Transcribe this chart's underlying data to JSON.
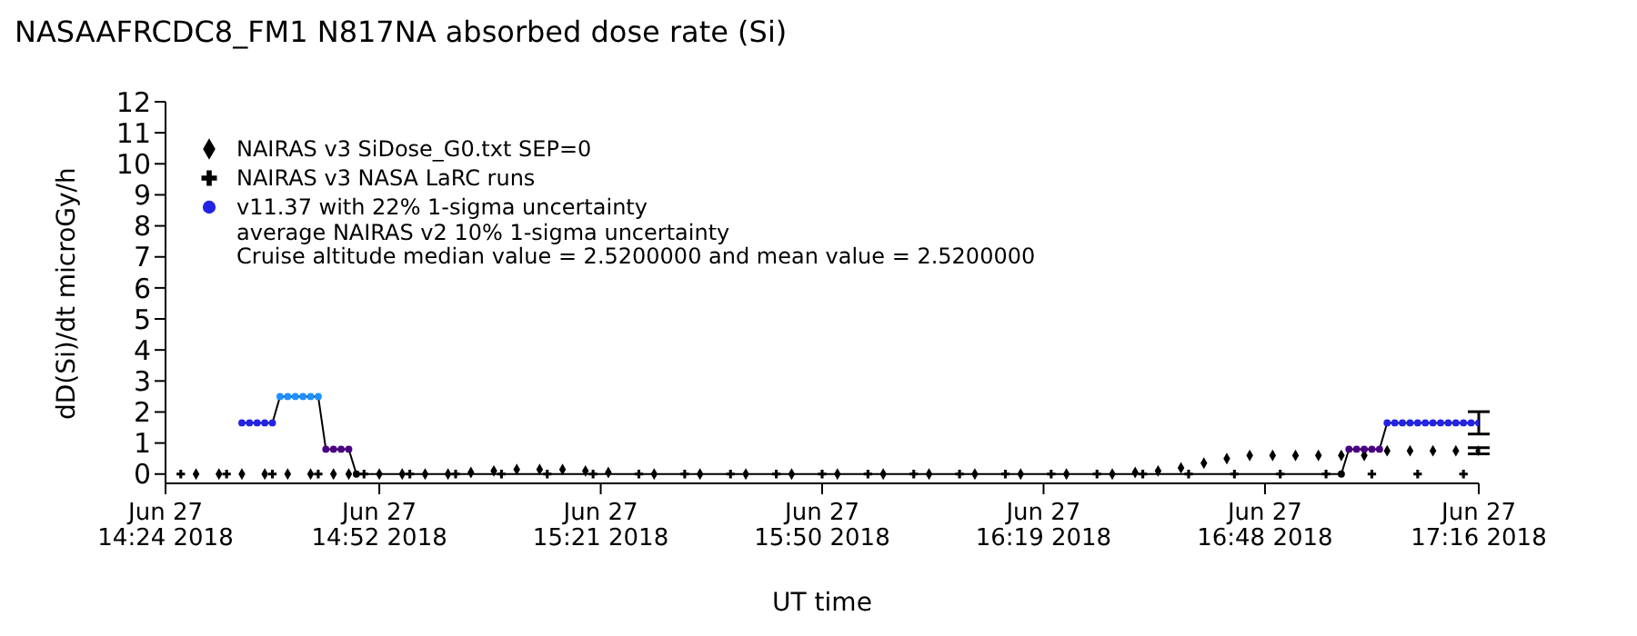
{
  "chart_data": {
    "type": "scatter",
    "title": "NASAAFRCDC8_FM1   N817NA absorbed dose rate (Si)",
    "xlabel": "UT time",
    "ylabel": "dD(Si)/dt microGy/h",
    "annotations": [
      "average NAIRAS v2 10% 1-sigma uncertainty",
      "Cruise altitude median value = 2.5200000 and mean value = 2.5200000"
    ],
    "xlim": [
      "2018-06-27T14:24",
      "2018-06-27T17:16"
    ],
    "xticks": [
      {
        "value": "2018-06-27T14:24",
        "label": "Jun 27\n14:24 2018"
      },
      {
        "value": "2018-06-27T14:52",
        "label": "Jun 27\n14:52 2018"
      },
      {
        "value": "2018-06-27T15:21",
        "label": "Jun 27\n15:21 2018"
      },
      {
        "value": "2018-06-27T15:50",
        "label": "Jun 27\n15:50 2018"
      },
      {
        "value": "2018-06-27T16:19",
        "label": "Jun 27\n16:19 2018"
      },
      {
        "value": "2018-06-27T16:48",
        "label": "Jun 27\n16:48 2018"
      },
      {
        "value": "2018-06-27T17:16",
        "label": "Jun 27\n17:16 2018"
      }
    ],
    "ylim": [
      -0.3,
      12
    ],
    "yticks": [
      0,
      1,
      2,
      3,
      4,
      5,
      6,
      7,
      8,
      9,
      10,
      11,
      12
    ],
    "grid": false,
    "legend": "top left",
    "series": [
      {
        "name": "NAIRAS v3 SiDose_G0.txt SEP=0",
        "marker": "diamond",
        "color": "#000000",
        "x": [
          "2018-06-27T14:28",
          "2018-06-27T14:31",
          "2018-06-27T14:34",
          "2018-06-27T14:37",
          "2018-06-27T14:40",
          "2018-06-27T14:43",
          "2018-06-27T14:46",
          "2018-06-27T14:48",
          "2018-06-27T14:52",
          "2018-06-27T14:55",
          "2018-06-27T14:58",
          "2018-06-27T15:01",
          "2018-06-27T15:04",
          "2018-06-27T15:07",
          "2018-06-27T15:10",
          "2018-06-27T15:13",
          "2018-06-27T15:16",
          "2018-06-27T15:19",
          "2018-06-27T15:22",
          "2018-06-27T15:28",
          "2018-06-27T15:34",
          "2018-06-27T15:40",
          "2018-06-27T15:46",
          "2018-06-27T15:52",
          "2018-06-27T15:58",
          "2018-06-27T16:04",
          "2018-06-27T16:10",
          "2018-06-27T16:16",
          "2018-06-27T16:22",
          "2018-06-27T16:28",
          "2018-06-27T16:31",
          "2018-06-27T16:34",
          "2018-06-27T16:37",
          "2018-06-27T16:40",
          "2018-06-27T16:43",
          "2018-06-27T16:46",
          "2018-06-27T16:49",
          "2018-06-27T16:52",
          "2018-06-27T16:55",
          "2018-06-27T16:58",
          "2018-06-27T17:01",
          "2018-06-27T17:04",
          "2018-06-27T17:07",
          "2018-06-27T17:10",
          "2018-06-27T17:13",
          "2018-06-27T17:16"
        ],
        "values": [
          0,
          0,
          0,
          0,
          0,
          0,
          0,
          0,
          0,
          0,
          0,
          0,
          0.05,
          0.1,
          0.15,
          0.15,
          0.15,
          0.1,
          0.05,
          0,
          0,
          0,
          0,
          0,
          0,
          0,
          0,
          0,
          0,
          0,
          0.05,
          0.1,
          0.2,
          0.35,
          0.5,
          0.6,
          0.6,
          0.6,
          0.6,
          0.6,
          0.6,
          0.75,
          0.75,
          0.75,
          0.75,
          0.75
        ],
        "errors": [
          null,
          null,
          null,
          null,
          null,
          null,
          null,
          null,
          null,
          null,
          null,
          null,
          null,
          null,
          null,
          null,
          null,
          null,
          null,
          null,
          null,
          null,
          null,
          null,
          null,
          null,
          null,
          null,
          null,
          null,
          null,
          null,
          null,
          null,
          null,
          null,
          null,
          null,
          null,
          null,
          null,
          null,
          null,
          null,
          null,
          0.1
        ]
      },
      {
        "name": "NAIRAS v3 NASA LaRC runs",
        "marker": "cross",
        "color": "#000000",
        "x": [
          "2018-06-27T14:26",
          "2018-06-27T14:32",
          "2018-06-27T14:38",
          "2018-06-27T14:44",
          "2018-06-27T14:50",
          "2018-06-27T14:56",
          "2018-06-27T15:02",
          "2018-06-27T15:08",
          "2018-06-27T15:14",
          "2018-06-27T15:20",
          "2018-06-27T15:26",
          "2018-06-27T15:32",
          "2018-06-27T15:38",
          "2018-06-27T15:44",
          "2018-06-27T15:50",
          "2018-06-27T15:56",
          "2018-06-27T16:02",
          "2018-06-27T16:08",
          "2018-06-27T16:14",
          "2018-06-27T16:20",
          "2018-06-27T16:26",
          "2018-06-27T16:32",
          "2018-06-27T16:38",
          "2018-06-27T16:44",
          "2018-06-27T16:50",
          "2018-06-27T16:56",
          "2018-06-27T17:02",
          "2018-06-27T17:08",
          "2018-06-27T17:14"
        ],
        "values": [
          0,
          0,
          0,
          0,
          0,
          0,
          0,
          0,
          0,
          0,
          0,
          0,
          0,
          0,
          0,
          0,
          0,
          0,
          0,
          0,
          0,
          0,
          0,
          0,
          0,
          0,
          0,
          0,
          0
        ]
      },
      {
        "type": "line",
        "marker": "none",
        "line_style": "solid",
        "color": "#000000",
        "x": [
          "2018-06-27T14:34",
          "2018-06-27T14:38",
          "2018-06-27T14:39",
          "2018-06-27T14:44",
          "2018-06-27T14:45",
          "2018-06-27T14:48",
          "2018-06-27T14:49",
          "2018-06-27T16:58",
          "2018-06-27T16:59",
          "2018-06-27T17:03",
          "2018-06-27T17:04",
          "2018-06-27T17:16"
        ],
        "values": [
          1.65,
          1.65,
          2.5,
          2.5,
          0.8,
          0.8,
          0,
          0,
          0.8,
          0.8,
          1.65,
          1.65
        ]
      },
      {
        "name": "v11.37 with 22% 1-sigma uncertainty",
        "marker": "circle",
        "color": "#2323e6",
        "x": [
          "2018-06-27T14:34",
          "2018-06-27T14:35",
          "2018-06-27T14:36",
          "2018-06-27T14:37",
          "2018-06-27T14:38",
          "2018-06-27T14:39",
          "2018-06-27T14:40",
          "2018-06-27T14:41",
          "2018-06-27T14:42",
          "2018-06-27T14:43",
          "2018-06-27T14:44",
          "2018-06-27T14:45",
          "2018-06-27T14:46",
          "2018-06-27T14:47",
          "2018-06-27T14:48",
          "2018-06-27T14:49",
          "2018-06-27T16:58",
          "2018-06-27T16:59",
          "2018-06-27T17:00",
          "2018-06-27T17:01",
          "2018-06-27T17:02",
          "2018-06-27T17:03",
          "2018-06-27T17:04",
          "2018-06-27T17:05",
          "2018-06-27T17:06",
          "2018-06-27T17:07",
          "2018-06-27T17:08",
          "2018-06-27T17:09",
          "2018-06-27T17:10",
          "2018-06-27T17:11",
          "2018-06-27T17:12",
          "2018-06-27T17:13",
          "2018-06-27T17:14",
          "2018-06-27T17:15",
          "2018-06-27T17:16"
        ],
        "values": [
          1.65,
          1.65,
          1.65,
          1.65,
          1.65,
          2.5,
          2.5,
          2.5,
          2.5,
          2.5,
          2.5,
          0.8,
          0.8,
          0.8,
          0.8,
          0,
          0,
          0.8,
          0.8,
          0.8,
          0.8,
          0.8,
          1.65,
          1.65,
          1.65,
          1.65,
          1.65,
          1.65,
          1.65,
          1.65,
          1.65,
          1.65,
          1.65,
          1.65,
          1.65
        ],
        "colors": [
          "#2323e6",
          "#2323e6",
          "#2323e6",
          "#2323e6",
          "#2323e6",
          "#1e90ff",
          "#1e90ff",
          "#1e90ff",
          "#1e90ff",
          "#1e90ff",
          "#1e90ff",
          "#4b0082",
          "#4b0082",
          "#4b0082",
          "#4b0082",
          "#000000",
          "#000000",
          "#4b0082",
          "#4b0082",
          "#4b0082",
          "#4b0082",
          "#4b0082",
          "#2323e6",
          "#2323e6",
          "#2323e6",
          "#2323e6",
          "#2323e6",
          "#2323e6",
          "#2323e6",
          "#2323e6",
          "#2323e6",
          "#2323e6",
          "#2323e6",
          "#2323e6",
          "#2323e6"
        ],
        "errors": [
          null,
          null,
          null,
          null,
          null,
          null,
          null,
          null,
          null,
          null,
          null,
          null,
          null,
          null,
          null,
          null,
          null,
          null,
          null,
          null,
          null,
          null,
          null,
          null,
          null,
          null,
          null,
          null,
          null,
          null,
          null,
          null,
          null,
          null,
          0.36
        ]
      }
    ]
  }
}
